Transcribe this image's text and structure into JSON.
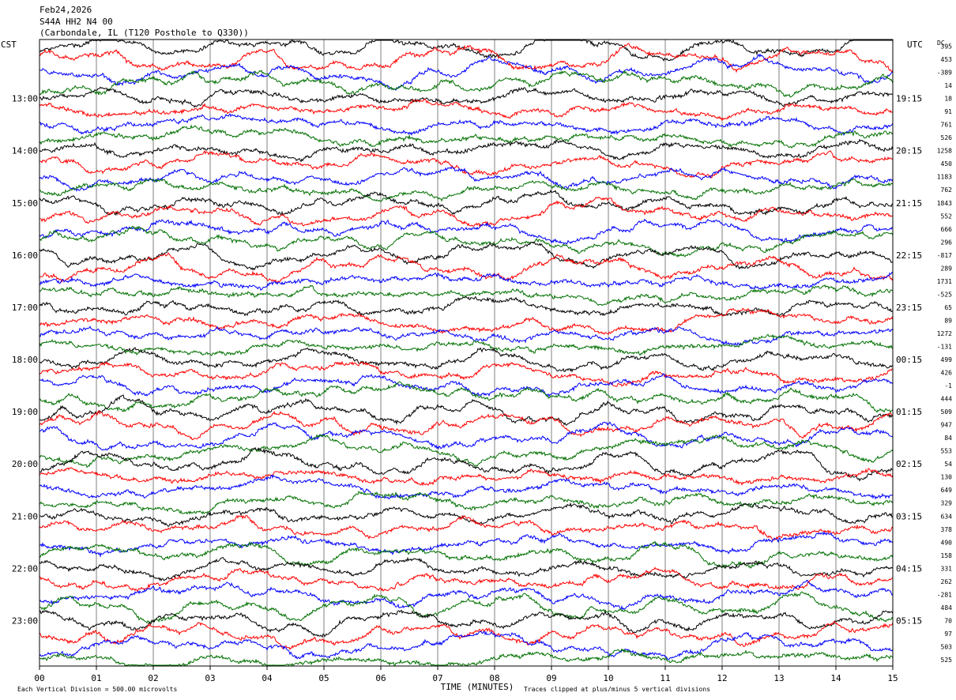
{
  "header": {
    "date": "Feb24,2026",
    "station": "S44A HH2 N4 00",
    "location": "(Carbondale, IL (T120 Posthole to Q330))"
  },
  "left_label": "CST",
  "right_label": "UTC",
  "dc_label": "DC",
  "footer": {
    "scale_note": "Each Vertical Division =  500.00 microvolts",
    "clip_note": "Traces clipped at plus/minus 5 vertical divisions"
  },
  "colors": {
    "trace_cycle": [
      "#000000",
      "#ff0000",
      "#0000ff",
      "#007000"
    ],
    "grid": "#808080"
  },
  "chart_data": {
    "type": "line",
    "xlabel": "TIME (MINUTES)",
    "x_ticks": [
      "00",
      "01",
      "02",
      "03",
      "04",
      "05",
      "06",
      "07",
      "08",
      "09",
      "10",
      "11",
      "12",
      "13",
      "14",
      "15"
    ],
    "xlim": [
      0,
      15
    ],
    "lines_per_hour": 4,
    "left_hour_labels": [
      "13:00",
      "14:00",
      "15:00",
      "16:00",
      "17:00",
      "18:00",
      "19:00",
      "20:00",
      "21:00",
      "22:00",
      "23:00"
    ],
    "right_hour_labels": [
      "19:15",
      "20:15",
      "21:15",
      "22:15",
      "23:15",
      "00:15",
      "01:15",
      "02:15",
      "03:15",
      "04:15",
      "05:15"
    ],
    "dc_offsets": [
      395,
      453,
      -389,
      14,
      18,
      91,
      761,
      526,
      1258,
      450,
      1183,
      762,
      1843,
      552,
      666,
      296,
      -817,
      289,
      1731,
      -525,
      65,
      89,
      1272,
      -131,
      499,
      426,
      -1,
      444,
      509,
      947,
      84,
      553,
      54,
      130,
      649,
      329,
      634,
      378,
      490,
      158,
      331,
      262,
      -281,
      484,
      70,
      97,
      503,
      525
    ]
  }
}
